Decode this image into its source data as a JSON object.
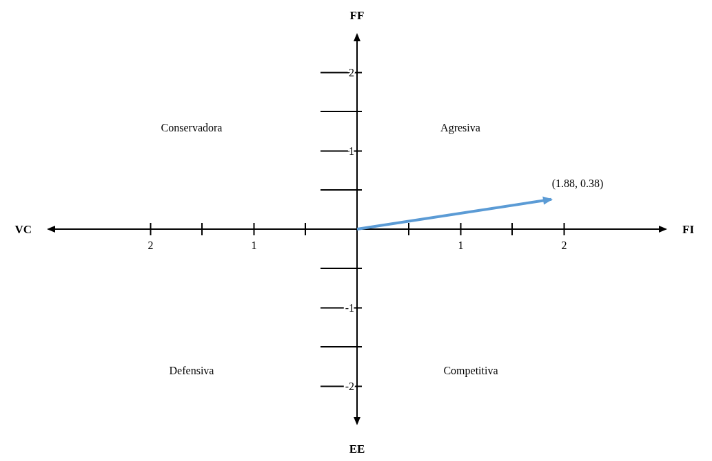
{
  "chart_data": {
    "type": "line",
    "xlabel": "FI",
    "ylabel": "FF",
    "xlim": [
      -3,
      3
    ],
    "ylim": [
      -2.5,
      2.5
    ],
    "xticks": [
      {
        "value": -2,
        "label": "2"
      },
      {
        "value": -1,
        "label": "1"
      },
      {
        "value": 1,
        "label": "1"
      },
      {
        "value": 2,
        "label": "2"
      }
    ],
    "yticks": [
      -2,
      -1,
      1,
      2
    ],
    "series": [
      {
        "color": "#5b9bd5",
        "x": [
          0,
          1.88
        ],
        "values": [
          0,
          0.38
        ]
      }
    ],
    "grid": false,
    "annotations": [
      "VC",
      "EE",
      "Conservadora",
      "Agresiva",
      "Defensiva",
      "Competitiva",
      {
        "text": "(1.88, 0.38)",
        "x": 1.88,
        "y": 0.38
      }
    ]
  }
}
